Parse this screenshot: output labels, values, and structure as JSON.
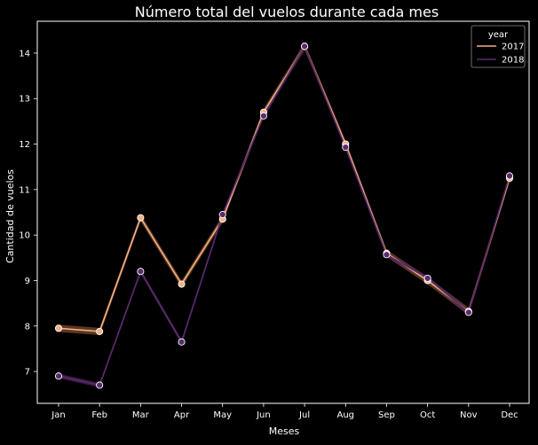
{
  "chart_data": {
    "type": "line",
    "title": "Número total del vuelos durante cada mes",
    "xlabel": "Meses",
    "ylabel": "Cantidad de vuelos",
    "categories": [
      "Jan",
      "Feb",
      "Mar",
      "Apr",
      "May",
      "Jun",
      "Jul",
      "Aug",
      "Sep",
      "Oct",
      "Nov",
      "Dec"
    ],
    "yticks": [
      7,
      8,
      9,
      10,
      11,
      12,
      13,
      14
    ],
    "ylim": [
      6.3,
      14.7
    ],
    "grid": false,
    "legend": {
      "title": "year",
      "placement": "top-right"
    },
    "series": [
      {
        "name": "2017",
        "color": "#f4b183",
        "band_color": "#7a4a2a",
        "values": [
          7.95,
          7.88,
          10.38,
          8.92,
          10.35,
          12.7,
          14.15,
          12.0,
          9.6,
          9.0,
          8.32,
          11.25
        ]
      },
      {
        "name": "2018",
        "color": "#5b2a6e",
        "band_color": "#4a2358",
        "values": [
          6.9,
          6.7,
          9.2,
          7.65,
          10.45,
          12.62,
          14.15,
          11.93,
          9.57,
          9.05,
          8.3,
          11.3
        ]
      }
    ],
    "colors": {
      "background": "#000000",
      "text": "#ffffff",
      "axis": "#ffffff",
      "marker_edge": "#ffffff"
    }
  }
}
